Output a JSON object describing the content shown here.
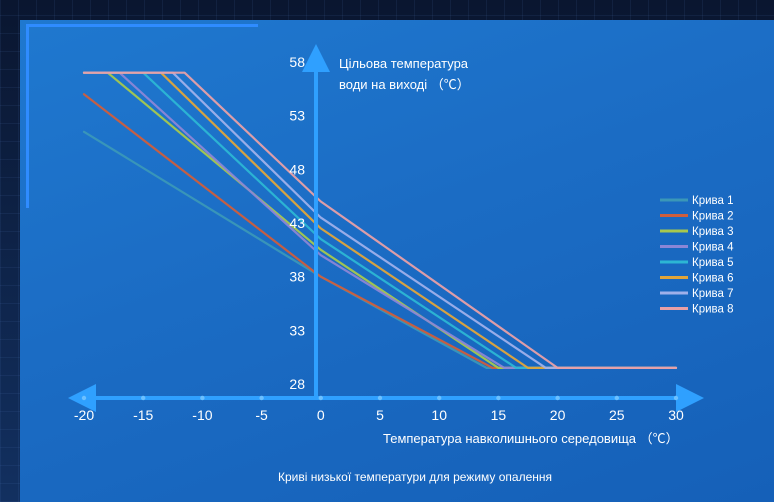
{
  "chart_data": {
    "type": "line",
    "title": "Криві низької температури для режиму опалення",
    "xlabel": "Температура навколишнього середовища （℃）",
    "ylabel_lines": [
      "Цільова температура",
      "води на виході （℃）"
    ],
    "x_ticks": [
      "-20",
      "-15",
      "-10",
      "-5",
      "0",
      "5",
      "10",
      "15",
      "20",
      "25",
      "30"
    ],
    "y_ticks": [
      "58",
      "53",
      "48",
      "43",
      "38",
      "33",
      "28"
    ],
    "xlim": [
      -20,
      30
    ],
    "ylim": [
      28,
      58
    ],
    "legend_position": "right",
    "series": [
      {
        "name": "Крива 1",
        "color": "#3a97b8",
        "points": [
          [
            -20,
            51.5
          ],
          [
            0,
            38
          ],
          [
            14,
            29.5
          ],
          [
            30,
            29.5
          ]
        ]
      },
      {
        "name": "Крива 2",
        "color": "#cf5e3c",
        "points": [
          [
            -20,
            55
          ],
          [
            0,
            38
          ],
          [
            14.5,
            29.5
          ],
          [
            30,
            29.5
          ]
        ]
      },
      {
        "name": "Крива 3",
        "color": "#a7c84e",
        "points": [
          [
            -20,
            57
          ],
          [
            -18,
            57
          ],
          [
            0,
            40.5
          ],
          [
            15,
            29.5
          ],
          [
            30,
            29.5
          ]
        ]
      },
      {
        "name": "Крива 4",
        "color": "#8b86d6",
        "points": [
          [
            -20,
            57
          ],
          [
            -17,
            57
          ],
          [
            0,
            40
          ],
          [
            15.5,
            29.5
          ],
          [
            30,
            29.5
          ]
        ]
      },
      {
        "name": "Крива 5",
        "color": "#2cb6d4",
        "points": [
          [
            -20,
            57
          ],
          [
            -15,
            57
          ],
          [
            0,
            41.5
          ],
          [
            16.5,
            29.5
          ],
          [
            30,
            29.5
          ]
        ]
      },
      {
        "name": "Крива 6",
        "color": "#e0a53a",
        "points": [
          [
            -20,
            57
          ],
          [
            -13.5,
            57
          ],
          [
            0,
            42.5
          ],
          [
            17.5,
            29.5
          ],
          [
            30,
            29.5
          ]
        ]
      },
      {
        "name": "Крива 7",
        "color": "#9fb0ea",
        "points": [
          [
            -20,
            57
          ],
          [
            -12.5,
            57
          ],
          [
            0,
            43.5
          ],
          [
            19,
            29.5
          ],
          [
            30,
            29.5
          ]
        ]
      },
      {
        "name": "Крива 8",
        "color": "#e8a0a6",
        "points": [
          [
            -20,
            57
          ],
          [
            -11.5,
            57
          ],
          [
            0,
            45
          ],
          [
            20,
            29.5
          ],
          [
            30,
            29.5
          ]
        ]
      }
    ]
  }
}
